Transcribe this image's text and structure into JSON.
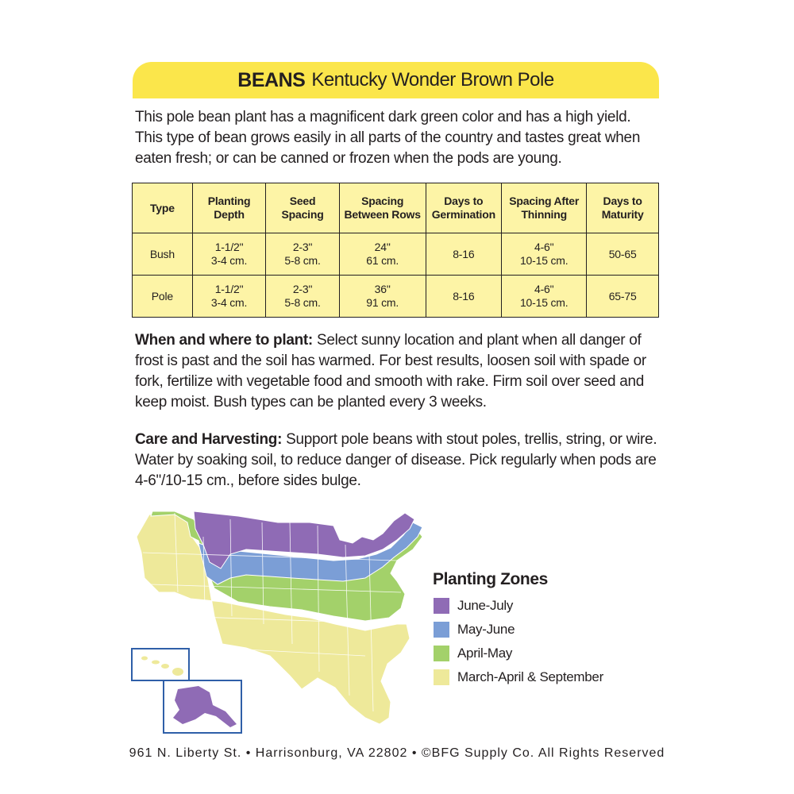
{
  "header": {
    "crop": "BEANS",
    "variety": "Kentucky Wonder Brown Pole"
  },
  "intro": "This pole bean plant has a magnificent dark green color and has a high yield.  This type of bean grows easily in all parts of the country and tastes great when eaten fresh; or can be canned or frozen when the pods are young.",
  "table": {
    "headers": [
      [
        "Type"
      ],
      [
        "Planting",
        "Depth"
      ],
      [
        "Seed",
        "Spacing"
      ],
      [
        "Spacing",
        "Between Rows"
      ],
      [
        "Days to",
        "Germination"
      ],
      [
        "Spacing After",
        "Thinning"
      ],
      [
        "Days to",
        "Maturity"
      ]
    ],
    "rows": [
      [
        [
          "Bush"
        ],
        [
          "1-1/2\"",
          "3-4 cm."
        ],
        [
          "2-3\"",
          "5-8 cm."
        ],
        [
          "24\"",
          "61 cm."
        ],
        [
          "8-16"
        ],
        [
          "4-6\"",
          "10-15 cm."
        ],
        [
          "50-65"
        ]
      ],
      [
        [
          "Pole"
        ],
        [
          "1-1/2\"",
          "3-4 cm."
        ],
        [
          "2-3\"",
          "5-8 cm."
        ],
        [
          "36\"",
          "91 cm."
        ],
        [
          "8-16"
        ],
        [
          "4-6\"",
          "10-15 cm."
        ],
        [
          "65-75"
        ]
      ]
    ]
  },
  "when_where": {
    "heading": "When and where to plant:",
    "body": " Select sunny location and plant when all danger of frost is past and the soil has warmed. For best results, loosen soil with spade or fork, fertilize with vegetable food and smooth with rake. Firm soil over seed and keep moist. Bush types can be planted every 3 weeks."
  },
  "care": {
    "heading": "Care and Harvesting:",
    "body": " Support pole beans with stout poles, trellis, string, or wire. Water by soaking soil, to reduce danger of disease. Pick regularly when pods are 4-6\"/10-15 cm., before sides bulge."
  },
  "legend": {
    "title": "Planting Zones",
    "items": [
      {
        "label": "June-July",
        "color": "#8f6bb5"
      },
      {
        "label": "May-June",
        "color": "#7b9ed6"
      },
      {
        "label": "April-May",
        "color": "#a3d16a"
      },
      {
        "label": "March-April & September",
        "color": "#eee99a"
      }
    ]
  },
  "footer": "961 N. Liberty St. • Harrisonburg, VA 22802 • ©BFG Supply Co. All Rights Reserved"
}
